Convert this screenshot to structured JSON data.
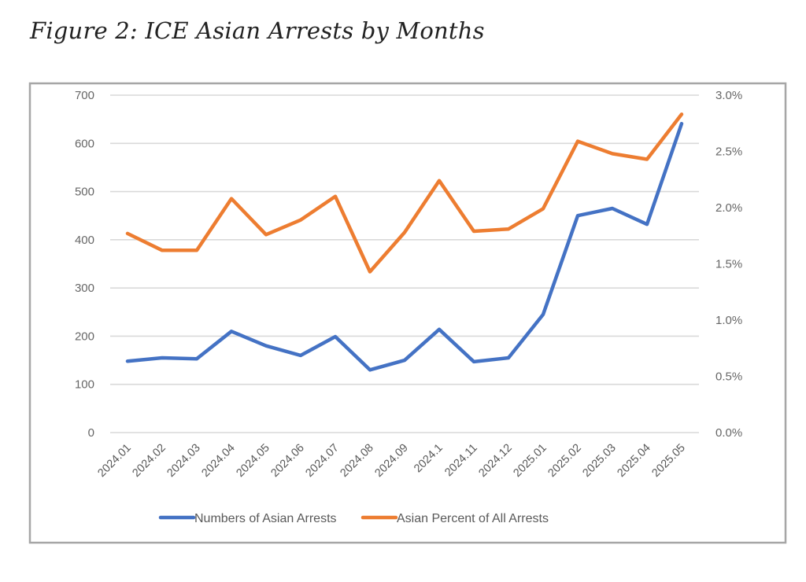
{
  "figure": {
    "title": "Figure 2: ICE Asian Arrests by Months"
  },
  "chart_data": {
    "type": "line",
    "title": "Figure 2: ICE Asian Arrests by Months",
    "xlabel": "",
    "ylabel": "",
    "categories": [
      "2024.01",
      "2024.02",
      "2024.03",
      "2024.04",
      "2024.05",
      "2024.06",
      "2024.07",
      "2024.08",
      "2024.09",
      "2024.1",
      "2024.11",
      "2024.12",
      "2025.01",
      "2025.02",
      "2025.03",
      "2025.04",
      "2025.05"
    ],
    "series": [
      {
        "name": "Numbers of Asian Arrests",
        "axis": "left",
        "color": "#4472C4",
        "values": [
          148,
          155,
          153,
          210,
          180,
          160,
          199,
          130,
          150,
          214,
          147,
          155,
          245,
          450,
          465,
          432,
          641
        ]
      },
      {
        "name": "Asian Percent of All Arrests",
        "axis": "right",
        "color": "#ED7D31",
        "values": [
          1.77,
          1.62,
          1.62,
          2.08,
          1.76,
          1.89,
          2.1,
          1.43,
          1.78,
          2.24,
          1.79,
          1.81,
          1.99,
          2.59,
          2.48,
          2.43,
          2.83
        ]
      }
    ],
    "y_left": {
      "range": [
        0,
        700
      ],
      "ticks": [
        0,
        100,
        200,
        300,
        400,
        500,
        600,
        700
      ],
      "tick_labels": [
        "0",
        "100",
        "200",
        "300",
        "400",
        "500",
        "600",
        "700"
      ]
    },
    "y_right": {
      "range": [
        0,
        3.0
      ],
      "unit": "%",
      "ticks": [
        0,
        0.5,
        1.0,
        1.5,
        2.0,
        2.5,
        3.0
      ],
      "tick_labels": [
        "0.0%",
        "0.5%",
        "1.0%",
        "1.5%",
        "2.0%",
        "2.5%",
        "3.0%"
      ]
    },
    "grid": true,
    "legend": {
      "position": "bottom",
      "entries": [
        "Numbers of Asian Arrests",
        "Asian Percent of All Arrests"
      ]
    },
    "colors": {
      "grid": "#d9d9d9",
      "frame": "#a6a6a6",
      "tick_text": "#595959"
    }
  }
}
